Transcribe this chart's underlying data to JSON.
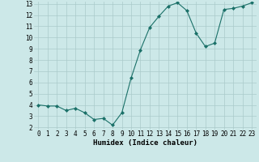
{
  "x": [
    0,
    1,
    2,
    3,
    4,
    5,
    6,
    7,
    8,
    9,
    10,
    11,
    12,
    13,
    14,
    15,
    16,
    17,
    18,
    19,
    20,
    21,
    22,
    23
  ],
  "y": [
    4.0,
    3.9,
    3.9,
    3.5,
    3.7,
    3.3,
    2.7,
    2.8,
    2.2,
    3.3,
    6.4,
    8.9,
    10.9,
    11.9,
    12.8,
    13.1,
    12.4,
    10.4,
    9.2,
    9.5,
    12.5,
    12.6,
    12.8,
    13.1
  ],
  "line_color": "#1a7068",
  "marker": "D",
  "marker_size": 2.0,
  "bg_color": "#cce8e8",
  "grid_color": "#aacaca",
  "xlabel": "Humidex (Indice chaleur)",
  "ylim": [
    2,
    13
  ],
  "xlim": [
    -0.5,
    23.5
  ],
  "yticks": [
    2,
    3,
    4,
    5,
    6,
    7,
    8,
    9,
    10,
    11,
    12,
    13
  ],
  "xticks": [
    0,
    1,
    2,
    3,
    4,
    5,
    6,
    7,
    8,
    9,
    10,
    11,
    12,
    13,
    14,
    15,
    16,
    17,
    18,
    19,
    20,
    21,
    22,
    23
  ],
  "label_fontsize": 6.5,
  "tick_fontsize": 5.5
}
